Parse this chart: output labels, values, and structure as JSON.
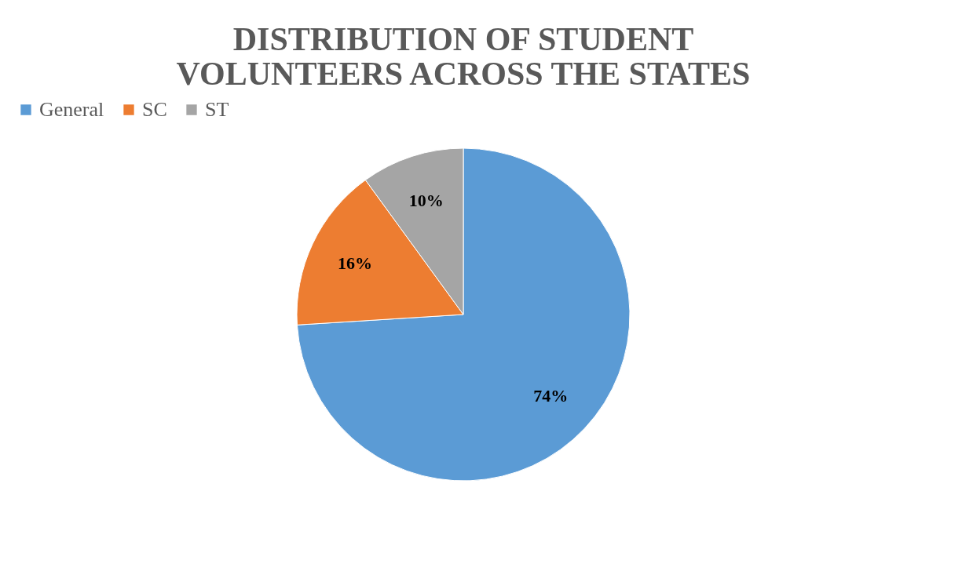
{
  "chart_data": {
    "type": "pie",
    "title": [
      "DISTRIBUTION  OF STUDENT",
      "VOLUNTEERS  ACROSS THE STATES"
    ],
    "categories": [
      "General",
      "SC",
      "ST"
    ],
    "values": [
      74,
      16,
      10
    ],
    "colors": [
      "#5b9bd5",
      "#ed7d31",
      "#a5a5a5"
    ],
    "value_labels": [
      "74%",
      "16%",
      "10%"
    ],
    "legend": "top"
  }
}
